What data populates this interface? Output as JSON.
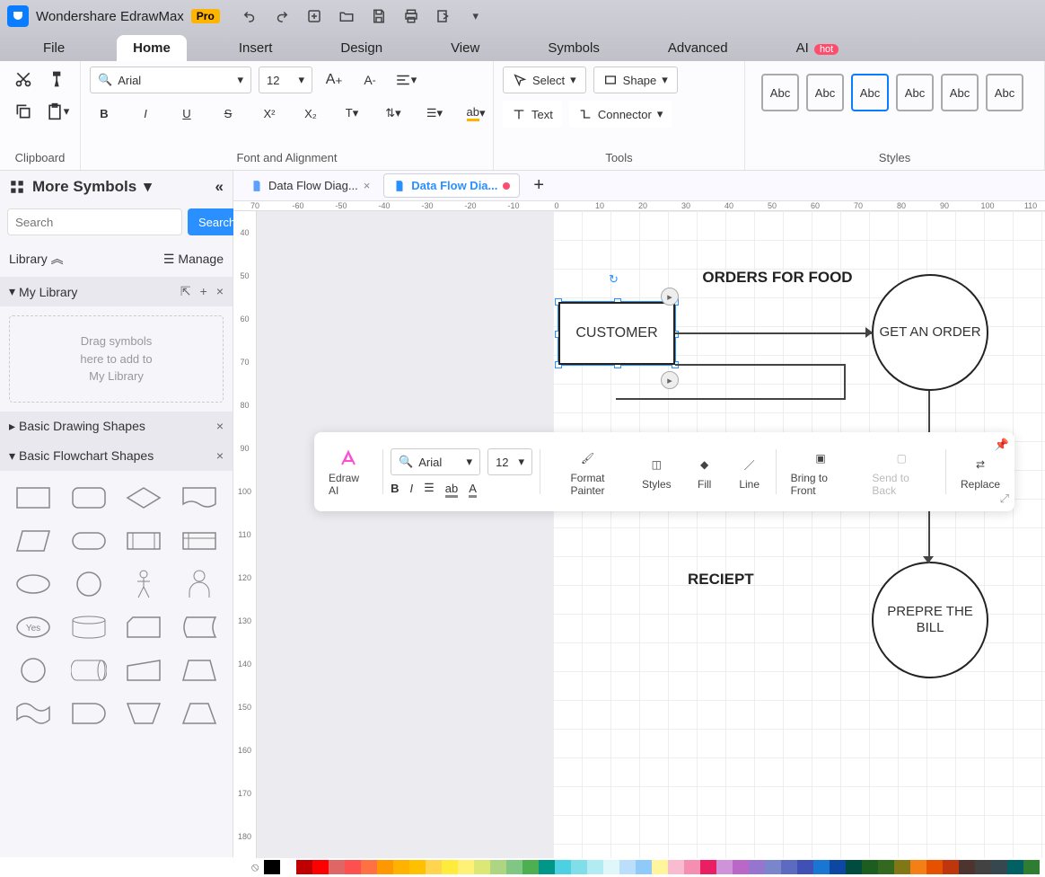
{
  "titlebar": {
    "app_name": "Wondershare EdrawMax",
    "pro_label": "Pro"
  },
  "menu": {
    "items": [
      "File",
      "Home",
      "Insert",
      "Design",
      "View",
      "Symbols",
      "Advanced",
      "AI"
    ],
    "active_index": 1,
    "hot_label": "hot"
  },
  "ribbon": {
    "clipboard_label": "Clipboard",
    "font_label": "Font and Alignment",
    "tools_label": "Tools",
    "styles_label": "Styles",
    "font_name": "Arial",
    "font_size": "12",
    "select_label": "Select",
    "shape_label": "Shape",
    "text_label": "Text",
    "connector_label": "Connector",
    "abc": "Abc"
  },
  "sidebar": {
    "header": "More Symbols",
    "search_placeholder": "Search",
    "search_btn": "Search",
    "library_label": "Library",
    "manage_label": "Manage",
    "mylib_label": "My Library",
    "mylib_drop_l1": "Drag symbols",
    "mylib_drop_l2": "here to add to",
    "mylib_drop_l3": "My Library",
    "basic_drawing": "Basic Drawing Shapes",
    "basic_flowchart": "Basic Flowchart Shapes"
  },
  "tabs": {
    "tab1": "Data Flow Diag...",
    "tab2": "Data Flow Dia..."
  },
  "ruler_h": [
    "70",
    "-60",
    "-50",
    "-40",
    "-30",
    "-20",
    "-10",
    "0",
    "10",
    "20",
    "30",
    "40",
    "50",
    "60",
    "70",
    "80",
    "90",
    "100",
    "110"
  ],
  "ruler_v": [
    "40",
    "50",
    "60",
    "70",
    "80",
    "90",
    "100",
    "110",
    "120",
    "130",
    "140",
    "150",
    "160",
    "170",
    "180"
  ],
  "diagram": {
    "customer": "CUSTOMER",
    "orders": "ORDERS FOR FOOD",
    "get_order": "GET AN ORDER",
    "receipt": "RECIEPT",
    "prepare": "PREPRE THE BILL"
  },
  "float": {
    "edraw_ai": "Edraw AI",
    "font": "Arial",
    "size": "12",
    "format_painter": "Format Painter",
    "styles": "Styles",
    "fill": "Fill",
    "line": "Line",
    "bring_front": "Bring to Front",
    "send_back": "Send to Back",
    "replace": "Replace"
  },
  "palette_colors": [
    "#000000",
    "#ffffff",
    "#c00000",
    "#ff0000",
    "#e06666",
    "#ff5050",
    "#ff7043",
    "#ff9800",
    "#ffb300",
    "#ffc000",
    "#ffd54f",
    "#ffeb3b",
    "#fff176",
    "#dce775",
    "#aed581",
    "#81c784",
    "#4caf50",
    "#009688",
    "#4dd0e1",
    "#80deea",
    "#b2ebf2",
    "#e0f7fa",
    "#bbdefb",
    "#90caf9",
    "#fff59d",
    "#f8bbd0",
    "#f48fb1",
    "#e91e63",
    "#ce93d8",
    "#ba68c8",
    "#9575cd",
    "#7986cb",
    "#5c6bc0",
    "#3f51b5",
    "#1976d2",
    "#0d47a1",
    "#004d40",
    "#1b5e20",
    "#33691e",
    "#827717",
    "#f57f17",
    "#e65100",
    "#bf360c",
    "#4e342e",
    "#424242",
    "#37474f",
    "#006064",
    "#2e7d32"
  ]
}
